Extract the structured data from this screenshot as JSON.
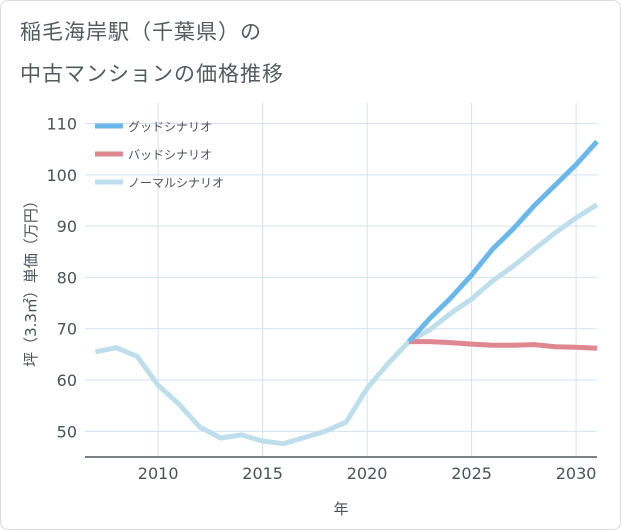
{
  "title_line1": "稲毛海岸駅（千葉県）の",
  "title_line2": "中古マンションの価格推移",
  "chart_data": {
    "type": "line",
    "xlabel": "年",
    "ylabel": "坪（3.3㎡）単価（万円）",
    "xlim": [
      2006.5,
      2031
    ],
    "ylim": [
      45,
      114
    ],
    "xticks": [
      2010,
      2015,
      2020,
      2025,
      2030
    ],
    "yticks": [
      50,
      60,
      70,
      80,
      90,
      100,
      110
    ],
    "grid": true,
    "legend_position": "top-left",
    "series": [
      {
        "name": "グッドシナリオ",
        "color": "#6ab7ec",
        "x": [
          2022,
          2023,
          2024,
          2025,
          2026,
          2027,
          2028,
          2029,
          2030,
          2031
        ],
        "values": [
          67.5,
          72.0,
          76.0,
          80.5,
          85.5,
          89.5,
          94.0,
          98.0,
          102.0,
          106.5
        ]
      },
      {
        "name": "バッドシナリオ",
        "color": "#df8791",
        "x": [
          2022,
          2023,
          2024,
          2025,
          2026,
          2027,
          2028,
          2029,
          2030,
          2031
        ],
        "values": [
          67.5,
          67.5,
          67.3,
          67.0,
          66.8,
          66.8,
          66.9,
          66.5,
          66.4,
          66.2
        ]
      },
      {
        "name": "ノーマルシナリオ",
        "color": "#bfdeeb",
        "x": [
          2007,
          2008,
          2009,
          2010,
          2011,
          2012,
          2013,
          2014,
          2015,
          2016,
          2017,
          2018,
          2019,
          2020,
          2021,
          2022,
          2023,
          2024,
          2025,
          2026,
          2027,
          2028,
          2029,
          2030,
          2031
        ],
        "values": [
          65.5,
          66.3,
          64.6,
          59.0,
          55.3,
          50.8,
          48.7,
          49.3,
          48.1,
          47.6,
          48.8,
          50.0,
          51.8,
          58.4,
          63.2,
          67.5,
          69.8,
          73.0,
          75.8,
          79.3,
          82.2,
          85.5,
          88.7,
          91.6,
          94.2
        ]
      }
    ]
  }
}
